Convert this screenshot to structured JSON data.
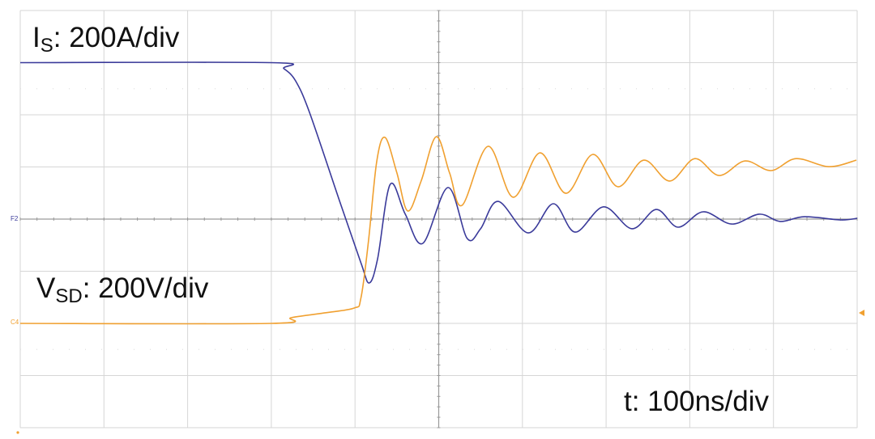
{
  "chart_data": {
    "type": "line",
    "title": "",
    "xlabel": "",
    "ylabel": "",
    "grid": true,
    "x_divisions": 10,
    "y_divisions": 8,
    "xlim": [
      0,
      1000
    ],
    "x_unit": "ns",
    "annotations": {
      "current_scale": {
        "main": "I",
        "sub": "S",
        "rest": ": 200A/div"
      },
      "voltage_scale": {
        "main": "V",
        "sub": "SD",
        "rest": ": 200V/div"
      },
      "time_scale": {
        "text": "t: 100ns/div"
      }
    },
    "channel_markers": {
      "current": "F2",
      "voltage": "C4"
    },
    "series": [
      {
        "key": "I_S",
        "color": "#3a3a9a",
        "unit": "A",
        "ylim": [
          -800,
          800
        ],
        "points": [
          [
            0,
            600
          ],
          [
            300,
            600
          ],
          [
            315,
            577
          ],
          [
            329,
            530
          ],
          [
            346,
            406
          ],
          [
            382,
            65
          ],
          [
            407,
            -167
          ],
          [
            417,
            -245
          ],
          [
            427,
            -152
          ],
          [
            442,
            133
          ],
          [
            460,
            19
          ],
          [
            481,
            -93
          ],
          [
            511,
            121
          ],
          [
            534,
            -74
          ],
          [
            550,
            -37
          ],
          [
            571,
            68
          ],
          [
            607,
            -53
          ],
          [
            637,
            59
          ],
          [
            663,
            -50
          ],
          [
            697,
            47
          ],
          [
            731,
            -37
          ],
          [
            760,
            37
          ],
          [
            786,
            -31
          ],
          [
            816,
            28
          ],
          [
            850,
            -19
          ],
          [
            883,
            19
          ],
          [
            908,
            -9
          ],
          [
            937,
            9
          ],
          [
            980,
            -3
          ],
          [
            1000,
            3
          ]
        ]
      },
      {
        "key": "V_SD",
        "color": "#f0a030",
        "unit": "V",
        "ylim": [
          -400,
          1200
        ],
        "points": [
          [
            0,
            0
          ],
          [
            300,
            0
          ],
          [
            324,
            22
          ],
          [
            363,
            40
          ],
          [
            399,
            59
          ],
          [
            407,
            96
          ],
          [
            416,
            313
          ],
          [
            426,
            623
          ],
          [
            436,
            713
          ],
          [
            450,
            577
          ],
          [
            463,
            431
          ],
          [
            479,
            546
          ],
          [
            497,
            716
          ],
          [
            513,
            577
          ],
          [
            528,
            453
          ],
          [
            559,
            679
          ],
          [
            589,
            484
          ],
          [
            621,
            654
          ],
          [
            652,
            499
          ],
          [
            684,
            648
          ],
          [
            714,
            524
          ],
          [
            745,
            626
          ],
          [
            776,
            546
          ],
          [
            806,
            632
          ],
          [
            835,
            567
          ],
          [
            866,
            623
          ],
          [
            897,
            586
          ],
          [
            927,
            632
          ],
          [
            966,
            601
          ],
          [
            999,
            626
          ]
        ]
      }
    ]
  }
}
